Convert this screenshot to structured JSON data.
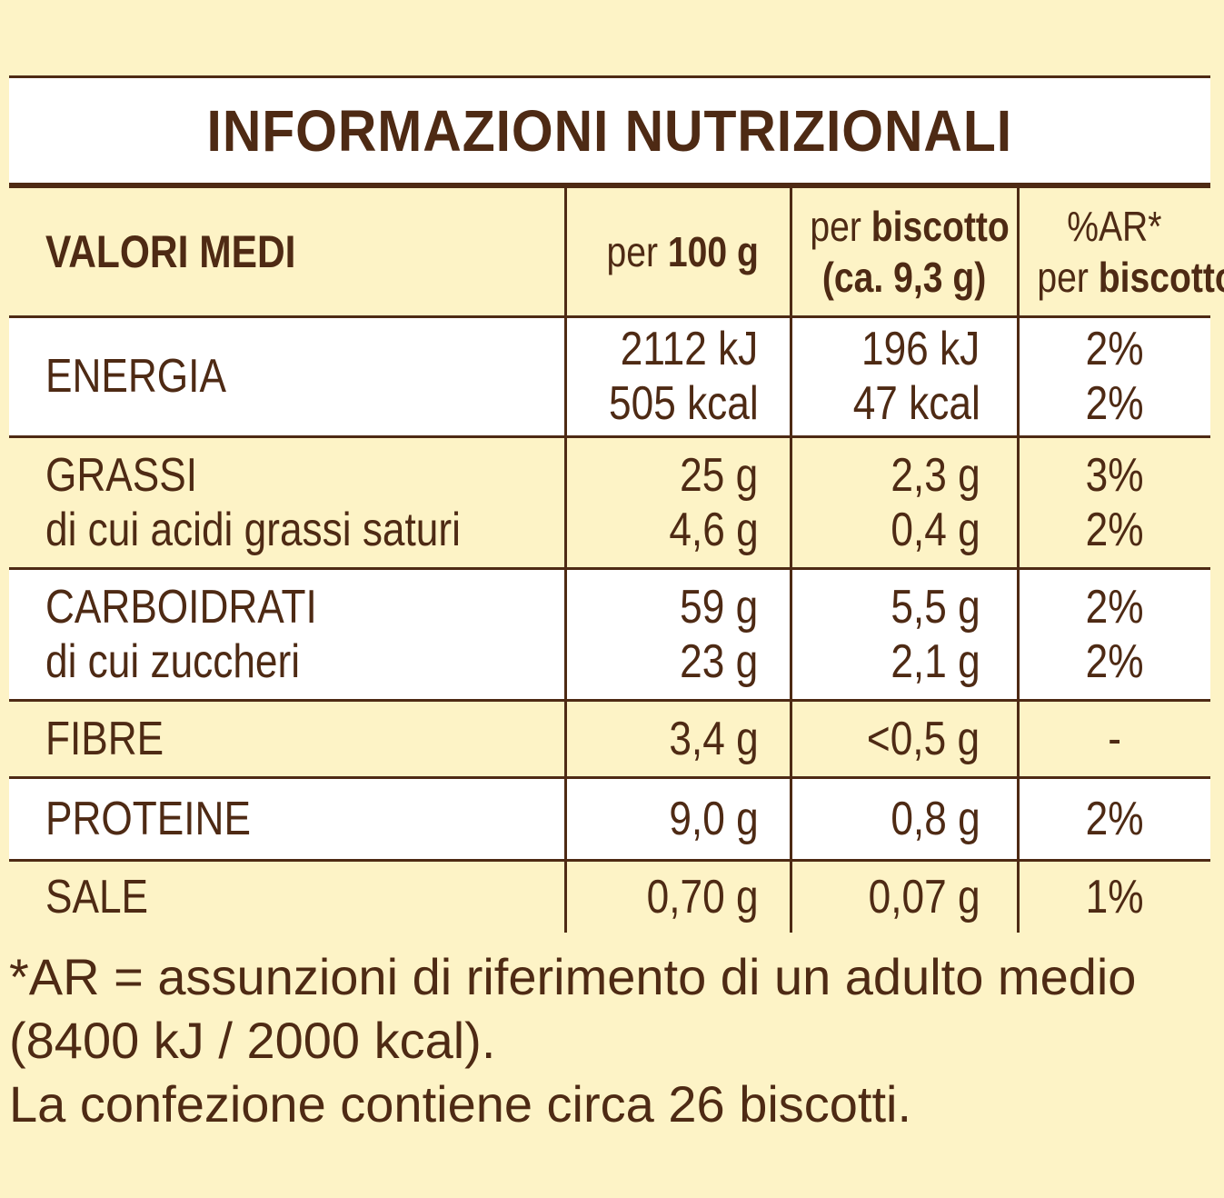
{
  "title": "INFORMAZIONI NUTRIZIONALI",
  "header": {
    "label": "VALORI MEDI",
    "col1_pre": "per",
    "col1_bold": "100 g",
    "col2_pre": "per",
    "col2_bold": "biscotto",
    "col2_line2": "(ca. 9,3 g)",
    "col3_line1": "%AR*",
    "col3_pre": "per",
    "col3_bold": "biscotto"
  },
  "rows": [
    {
      "label": "ENERGIA",
      "per100": "2112 kJ",
      "perBiscotto": "196 kJ",
      "ar": "2%",
      "sub_per100": "505 kcal",
      "sub_perBiscotto": "47 kcal",
      "sub_ar": "2%"
    },
    {
      "label": "GRASSI",
      "per100": "25 g",
      "perBiscotto": "2,3 g",
      "ar": "3%",
      "sub_label": "di cui acidi grassi saturi",
      "sub_per100": "4,6 g",
      "sub_perBiscotto": "0,4 g",
      "sub_ar": "2%"
    },
    {
      "label": "CARBOIDRATI",
      "per100": "59 g",
      "perBiscotto": "5,5 g",
      "ar": "2%",
      "sub_label": "di cui zuccheri",
      "sub_per100": "23 g",
      "sub_perBiscotto": "2,1 g",
      "sub_ar": "2%"
    },
    {
      "label": "FIBRE",
      "per100": "3,4 g",
      "perBiscotto": "<0,5 g",
      "ar": "-"
    },
    {
      "label": "PROTEINE",
      "per100": "9,0 g",
      "perBiscotto": "0,8 g",
      "ar": "2%"
    },
    {
      "label": "SALE",
      "per100": "0,70 g",
      "perBiscotto": "0,07 g",
      "ar": "1%"
    }
  ],
  "footer": {
    "line1": "*AR = assunzioni di riferimento di un adulto medio",
    "line2": "(8400 kJ / 2000 kcal).",
    "line3": "La confezione contiene circa 26 biscotti."
  },
  "colors": {
    "background": "#fdf3c6",
    "text": "#4e2a14",
    "white_band": "#ffffff"
  }
}
